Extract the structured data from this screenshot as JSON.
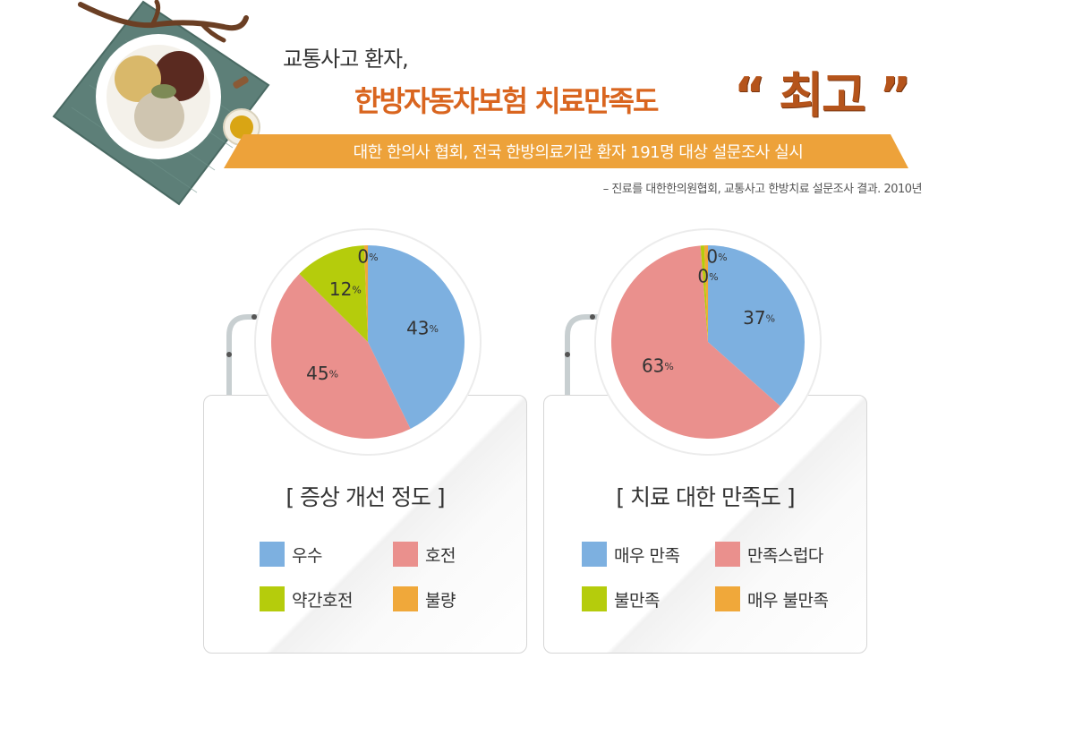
{
  "header": {
    "subtitle": "교통사고 환자,",
    "headline": "한방자동차보험 치료만족도",
    "headline_best": "“ 최고 ”",
    "banner": "대한 한의사 협회, 전국 한방의료기관 환자 191명 대상 설문조사 실시",
    "source_note": "– 진료를 대한한의원협회, 교통사고 한방치료 설문조사 결과. 2010년"
  },
  "colors": {
    "blue": "#7db0e0",
    "pink": "#ea908d",
    "green": "#b5cc0c",
    "orange": "#f0a83a",
    "banner": "#eda23a",
    "headline": "#d9651f"
  },
  "chart_data": [
    {
      "type": "pie",
      "title": "[ 증상 개선 정도 ]",
      "labels": [
        "우수",
        "호전",
        "약간호전",
        "불량"
      ],
      "values": [
        43,
        45,
        12,
        0
      ],
      "colors": [
        "#7db0e0",
        "#ea908d",
        "#b5cc0c",
        "#f0a83a"
      ],
      "unit": "%",
      "legend": "bottom"
    },
    {
      "type": "pie",
      "title": "[ 치료 대한 만족도 ]",
      "labels": [
        "매우 만족",
        "만족스럽다",
        "불만족",
        "매우 불만족"
      ],
      "values": [
        37,
        63,
        0,
        0
      ],
      "colors": [
        "#7db0e0",
        "#ea908d",
        "#b5cc0c",
        "#f0a83a"
      ],
      "unit": "%",
      "legend": "bottom"
    }
  ]
}
